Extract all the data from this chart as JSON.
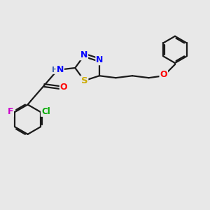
{
  "bg_color": "#e8e8e8",
  "bond_color": "#1a1a1a",
  "bond_width": 1.6,
  "atom_colors": {
    "N": "#0000ff",
    "S": "#ccaa00",
    "O": "#ff0000",
    "F": "#cc00cc",
    "Cl": "#00aa00",
    "C": "#1a1a1a"
  },
  "font_size": 9,
  "fig_size": [
    3.0,
    3.0
  ],
  "dpi": 100
}
